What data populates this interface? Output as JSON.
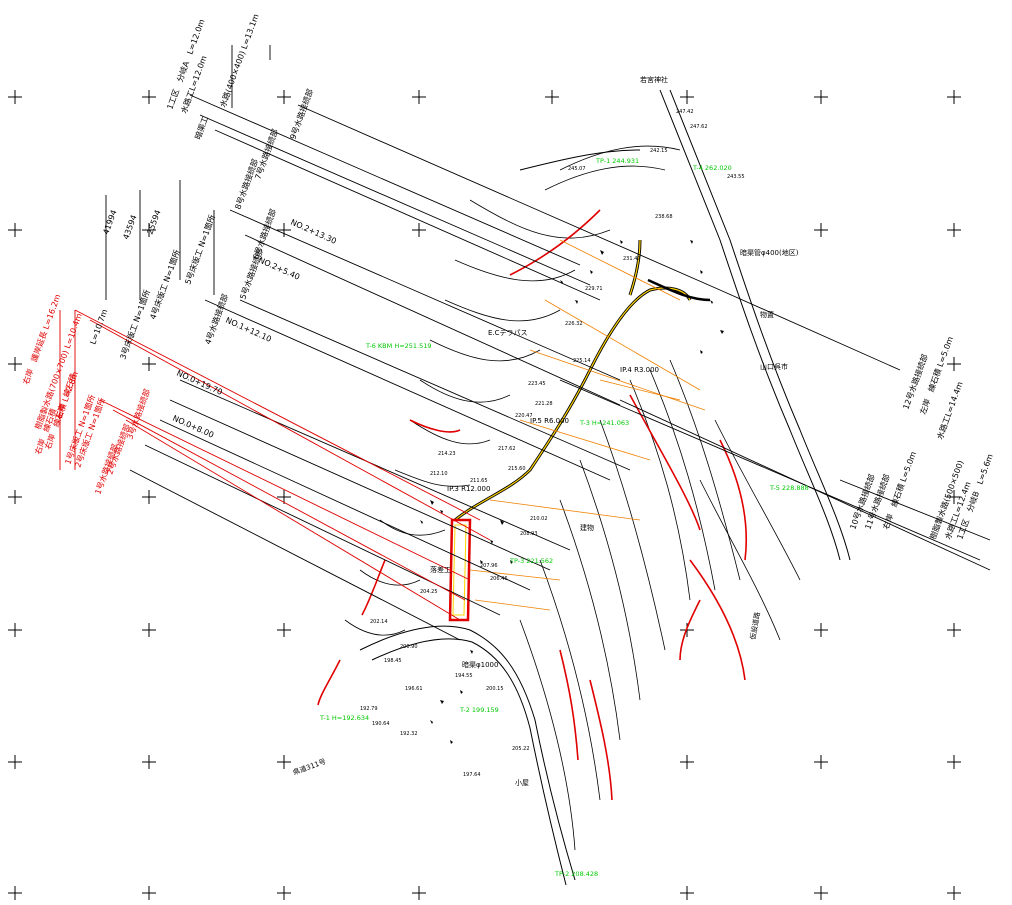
{
  "drawing": {
    "top_leaders": [
      {
        "id": "t1",
        "label": "1工区　分岐A　L=12.0m"
      },
      {
        "id": "t2",
        "label": "水路工L=12.0m"
      },
      {
        "id": "t3",
        "label": "水路(400×400) L=13.1m"
      },
      {
        "id": "t4",
        "label": "9号水路接続部"
      },
      {
        "id": "t5",
        "label": "暗渠工"
      },
      {
        "id": "t6",
        "label": "8号水路接続部"
      },
      {
        "id": "t7",
        "label": "7号水路接続部"
      },
      {
        "id": "t8",
        "label": "6号水路接続部"
      },
      {
        "id": "t9",
        "label": "5号水路接続部"
      },
      {
        "id": "t10",
        "label": "4号水路接続部"
      },
      {
        "id": "t11",
        "label": "4号床版工 N=1箇所"
      },
      {
        "id": "t12",
        "label": "3号床版工 N=1箇所"
      },
      {
        "id": "t13",
        "label": "5号床版工 N=1箇所"
      }
    ],
    "dimensions": [
      {
        "id": "d1",
        "label": "41994"
      },
      {
        "id": "d2",
        "label": "43594"
      },
      {
        "id": "d3",
        "label": "25594"
      },
      {
        "id": "d4",
        "label": "L=10.7m"
      }
    ],
    "stations": [
      {
        "id": "s1",
        "label": "NO.2+13.30"
      },
      {
        "id": "s2",
        "label": "NO.2+5.40"
      },
      {
        "id": "s3",
        "label": "NO.1+12.10"
      },
      {
        "id": "s4",
        "label": "NO.0+19.70"
      },
      {
        "id": "s5",
        "label": "NO.0+8.00"
      }
    ],
    "red_leaders": [
      {
        "id": "r1",
        "label": "右岸　護岸延長 L=16.2m"
      },
      {
        "id": "r2",
        "label": "樹脂製水路(700×700) L=10.4m"
      },
      {
        "id": "r3",
        "label": "右岸　練石積 L=2.8m"
      },
      {
        "id": "r4",
        "label": "2号床版工 N=1箇所"
      },
      {
        "id": "r5",
        "label": "1号床版工 N=1箇所"
      },
      {
        "id": "r6",
        "label": "3号水路接続部"
      },
      {
        "id": "r7",
        "label": "2号水路接続部"
      },
      {
        "id": "r8",
        "label": "1号水路接続部"
      },
      {
        "id": "r9",
        "label": "右岸　練石積"
      },
      {
        "id": "r10",
        "label": "左岸　練石積"
      }
    ],
    "right_leaders": [
      {
        "id": "g1",
        "label": "12号水路接続部"
      },
      {
        "id": "g2",
        "label": "左岸　練石積 L=5.0m"
      },
      {
        "id": "g3",
        "label": "11号水路接続部"
      },
      {
        "id": "g4",
        "label": "水路工L=14.4m"
      },
      {
        "id": "g5",
        "label": "10号水路接続部"
      },
      {
        "id": "g6",
        "label": "樹脂製水路(500×500)"
      },
      {
        "id": "g7",
        "label": "右岸　練石積 L=5.0m"
      },
      {
        "id": "g8",
        "label": "1工区　分岐B　L=5.6m"
      },
      {
        "id": "g9",
        "label": "水路工L=12.4m"
      }
    ],
    "survey_points": [
      {
        "id": "p1",
        "label": "T-6 KBM H=251.519"
      },
      {
        "id": "p2",
        "label": "TP-1 244.931"
      },
      {
        "id": "p3",
        "label": "T-4 262.020"
      },
      {
        "id": "p4",
        "label": "IP.5 R6.000"
      },
      {
        "id": "p5",
        "label": "IP.3 R12.000"
      },
      {
        "id": "p6",
        "label": "IP.4 R3.000"
      },
      {
        "id": "p7",
        "label": "T-3 H=241.063"
      },
      {
        "id": "p8",
        "label": "TP-3 221.562"
      },
      {
        "id": "p9",
        "label": "T-1 H=192.634"
      },
      {
        "id": "p10",
        "label": "T-2 199.159"
      },
      {
        "id": "p11",
        "label": "T-5 228.888"
      },
      {
        "id": "p12",
        "label": "TP-2 208.428"
      }
    ],
    "misc_labels": [
      {
        "id": "m1",
        "label": "若宮神社"
      },
      {
        "id": "m2",
        "label": "E.Cテラパス"
      },
      {
        "id": "m3",
        "label": "落差工"
      },
      {
        "id": "m4",
        "label": "暗渠φ1000"
      },
      {
        "id": "m5",
        "label": "山口呉市"
      },
      {
        "id": "m6",
        "label": "県道311号"
      },
      {
        "id": "m7",
        "label": "物置"
      },
      {
        "id": "m8",
        "label": "建物"
      },
      {
        "id": "m9",
        "label": "小屋"
      },
      {
        "id": "m10",
        "label": "暗渠管φ400(地区)"
      },
      {
        "id": "m11",
        "label": "仮設道路"
      }
    ],
    "elevations": [
      "247.42",
      "247.62",
      "242.15",
      "245.07",
      "243.55",
      "238.68",
      "231.47",
      "229.71",
      "226.32",
      "225.14",
      "223.45",
      "221.28",
      "220.47",
      "217.62",
      "215.60",
      "214.23",
      "212.10",
      "211.65",
      "210.02",
      "208.93",
      "207.96",
      "206.46",
      "204.25",
      "202.14",
      "200.90",
      "198.45",
      "196.61",
      "194.55",
      "192.79",
      "192.32",
      "190.64",
      "197.64",
      "200.15",
      "205.22"
    ]
  }
}
